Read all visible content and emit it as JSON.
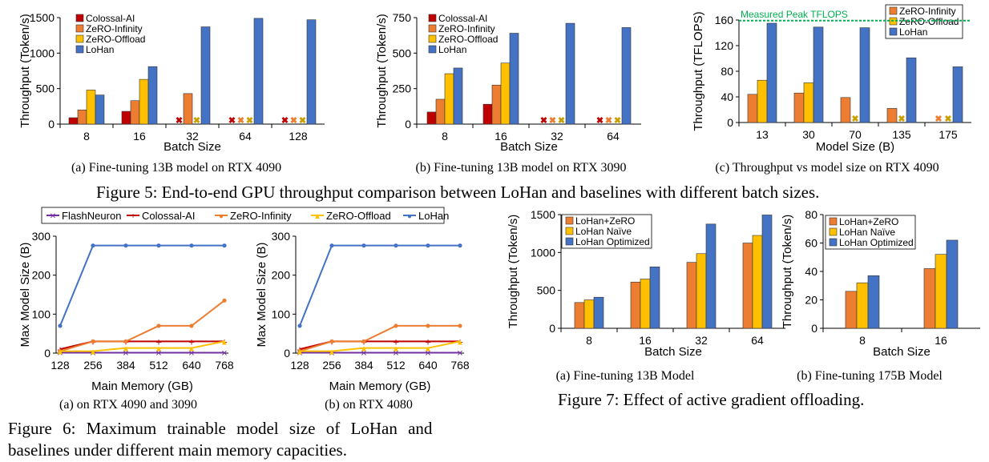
{
  "colors": {
    "colossal": "#c00000",
    "zinf": "#ed7d31",
    "zoff": "#ffc000",
    "lohan": "#4472c4",
    "flash": "#7030a0",
    "peak": "#00b050"
  },
  "chart_data": [
    {
      "id": "5a",
      "type": "bar",
      "ylabel": "Throughput (Token/s)",
      "xlabel": "Batch Size",
      "ylim": [
        0,
        1500
      ],
      "yticks": [
        0,
        500,
        1000,
        1500
      ],
      "categories": [
        "8",
        "16",
        "32",
        "64",
        "128"
      ],
      "series": [
        {
          "name": "Colossal-AI",
          "values": [
            90,
            180,
            null,
            null,
            null
          ]
        },
        {
          "name": "ZeRO-Infinity",
          "values": [
            200,
            330,
            430,
            null,
            null
          ]
        },
        {
          "name": "ZeRO-Offload",
          "values": [
            480,
            630,
            null,
            null,
            null
          ]
        },
        {
          "name": "LoHan",
          "values": [
            410,
            810,
            1370,
            1490,
            1470
          ]
        }
      ],
      "legend": "top-left",
      "oom_marker": "✖",
      "caption": "(a) Fine-tuning 13B model on RTX 4090"
    },
    {
      "id": "5b",
      "type": "bar",
      "ylabel": "Throughput (Token/s)",
      "xlabel": "Batch Size",
      "ylim": [
        0,
        750
      ],
      "yticks": [
        0,
        250,
        500,
        750
      ],
      "categories": [
        "8",
        "16",
        "32",
        "64"
      ],
      "series": [
        {
          "name": "Colossal-AI",
          "values": [
            85,
            140,
            null,
            null
          ]
        },
        {
          "name": "ZeRO-Infinity",
          "values": [
            175,
            275,
            null,
            null
          ]
        },
        {
          "name": "ZeRO-Offload",
          "values": [
            355,
            430,
            null,
            null
          ]
        },
        {
          "name": "LoHan",
          "values": [
            395,
            640,
            710,
            680
          ]
        }
      ],
      "legend": "top-left",
      "oom_marker": "✖",
      "caption": "(b) Fine-tuning 13B model on RTX 3090"
    },
    {
      "id": "5c",
      "type": "bar",
      "ylabel": "Throughput (TFLOPS)",
      "xlabel": "Model Size (B)",
      "ylim": [
        0,
        160
      ],
      "yticks": [
        0,
        40,
        80,
        120,
        160
      ],
      "categories": [
        "13",
        "30",
        "70",
        "135",
        "175"
      ],
      "series": [
        {
          "name": "ZeRO-Infinity",
          "values": [
            44,
            46,
            39,
            22,
            null
          ]
        },
        {
          "name": "ZeRO-Offload",
          "values": [
            66,
            62,
            null,
            null,
            null
          ]
        },
        {
          "name": "LoHan",
          "values": [
            155,
            149,
            148,
            101,
            87
          ]
        }
      ],
      "reference_line": {
        "label": "Measured Peak TFLOPS",
        "value": 159
      },
      "legend": "top-right",
      "oom_marker": "✖",
      "caption": "(c) Throughput vs model size on RTX 4090"
    },
    {
      "id": "6a",
      "type": "line",
      "ylabel": "Max Model Size (B)",
      "xlabel": "Main Memory (GB)",
      "ylim": [
        0,
        300
      ],
      "yticks": [
        0,
        100,
        200,
        300
      ],
      "x": [
        128,
        256,
        384,
        512,
        640,
        768
      ],
      "series": [
        {
          "name": "FlashNeuron",
          "values": [
            1,
            1,
            1,
            1,
            1,
            1
          ]
        },
        {
          "name": "Colossal-AI",
          "values": [
            10,
            30,
            30,
            30,
            30,
            30
          ]
        },
        {
          "name": "ZeRO-Infinity",
          "values": [
            5,
            30,
            30,
            70,
            70,
            135
          ]
        },
        {
          "name": "ZeRO-Offload",
          "values": [
            5,
            5,
            13,
            13,
            13,
            30
          ]
        },
        {
          "name": "LoHan",
          "values": [
            70,
            276,
            276,
            276,
            276,
            276
          ]
        }
      ],
      "legend": "top",
      "caption": "(a) on RTX 4090 and 3090"
    },
    {
      "id": "6b",
      "type": "line",
      "ylabel": "Max Model Size (B)",
      "xlabel": "Main Memory (GB)",
      "ylim": [
        0,
        300
      ],
      "yticks": [
        0,
        100,
        200,
        300
      ],
      "x": [
        128,
        256,
        384,
        512,
        640,
        768
      ],
      "series": [
        {
          "name": "FlashNeuron",
          "values": [
            1,
            1,
            1,
            1,
            1,
            1
          ]
        },
        {
          "name": "Colossal-AI",
          "values": [
            10,
            30,
            30,
            30,
            30,
            30
          ]
        },
        {
          "name": "ZeRO-Infinity",
          "values": [
            5,
            30,
            30,
            70,
            70,
            70
          ]
        },
        {
          "name": "ZeRO-Offload",
          "values": [
            5,
            5,
            13,
            13,
            13,
            30
          ]
        },
        {
          "name": "LoHan",
          "values": [
            70,
            276,
            276,
            276,
            276,
            276
          ]
        }
      ],
      "caption": "(b) on RTX 4080"
    },
    {
      "id": "7a",
      "type": "bar",
      "ylabel": "Throughput (Token/s)",
      "xlabel": "Batch Size",
      "ylim": [
        0,
        1500
      ],
      "yticks": [
        0,
        500,
        1000,
        1500
      ],
      "categories": [
        "8",
        "16",
        "32",
        "64"
      ],
      "series": [
        {
          "name": "LoHan+ZeRO",
          "values": [
            340,
            610,
            870,
            1125
          ]
        },
        {
          "name": "LoHan Naïve",
          "values": [
            375,
            650,
            985,
            1225
          ]
        },
        {
          "name": "LoHan Optimized",
          "values": [
            410,
            810,
            1375,
            1495
          ]
        }
      ],
      "legend": "top-left",
      "caption": "(a) Fine-tuning 13B Model"
    },
    {
      "id": "7b",
      "type": "bar",
      "ylabel": "Throughput (Token/s)",
      "xlabel": "Batch Size",
      "ylim": [
        0,
        80
      ],
      "yticks": [
        0,
        20,
        40,
        60,
        80
      ],
      "categories": [
        "8",
        "16"
      ],
      "series": [
        {
          "name": "LoHan+ZeRO",
          "values": [
            26,
            42
          ]
        },
        {
          "name": "LoHan Naïve",
          "values": [
            32,
            52
          ]
        },
        {
          "name": "LoHan Optimized",
          "values": [
            37,
            62
          ]
        }
      ],
      "legend": "top-left",
      "caption": "(b) Fine-tuning 175B Model"
    }
  ],
  "figures": {
    "fig5": "Figure 5: End-to-end GPU throughput comparison between LoHan and baselines with different batch sizes.",
    "fig6_line1": "Figure 6: Maximum trainable model size of LoHan and",
    "fig6_line2": "baselines under different main memory capacities.",
    "fig7": "Figure 7: Effect of active gradient offloading."
  }
}
